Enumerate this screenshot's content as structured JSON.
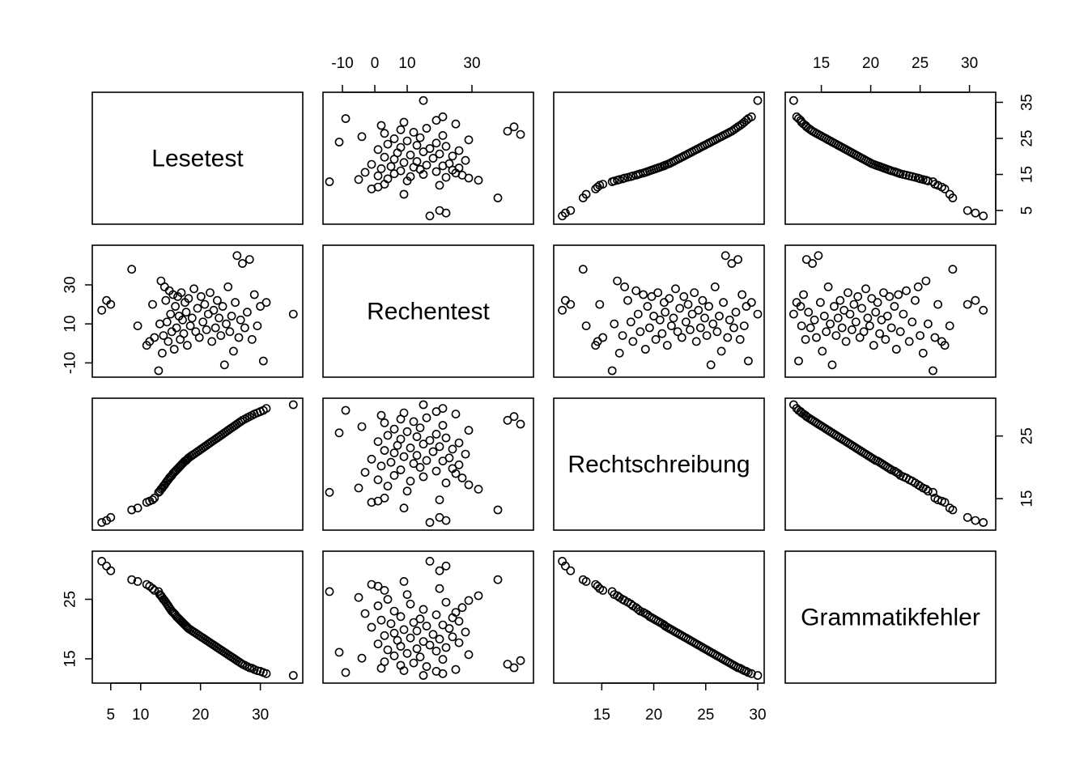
{
  "chart_data": {
    "type": "scatter",
    "kind": "scatterplot-matrix",
    "variables": [
      "Lesetest",
      "Rechentest",
      "Rechtschreibung",
      "Grammatikfehler"
    ],
    "ranges": {
      "Lesetest": [
        3,
        36
      ],
      "Rechentest": [
        -14,
        47
      ],
      "Rechtschreibung": [
        11,
        30
      ],
      "Grammatikfehler": [
        12,
        32
      ]
    },
    "axes": {
      "top": [
        {
          "variable": "Rechentest",
          "ticks": [
            -10,
            0,
            10,
            30
          ]
        },
        {
          "variable": "Grammatikfehler",
          "ticks": [
            15,
            20,
            25,
            30
          ]
        }
      ],
      "bottom": [
        {
          "variable": "Lesetest",
          "ticks": [
            5,
            10,
            20,
            30
          ]
        },
        {
          "variable": "Rechtschreibung",
          "ticks": [
            15,
            20,
            25,
            30
          ]
        }
      ],
      "left": [
        {
          "variable": "Rechentest",
          "ticks": [
            -10,
            10,
            30
          ]
        },
        {
          "variable": "Grammatikfehler",
          "ticks": [
            15,
            25
          ]
        }
      ],
      "right": [
        {
          "variable": "Lesetest",
          "ticks": [
            5,
            15,
            25,
            35
          ]
        },
        {
          "variable": "Rechtschreibung",
          "ticks": [
            15,
            25
          ]
        }
      ]
    },
    "observations": [
      {
        "Lesetest": 3.5,
        "Rechentest": 17,
        "Rechtschreibung": 11.2,
        "Grammatikfehler": 31.4
      },
      {
        "Lesetest": 4.3,
        "Rechentest": 22,
        "Rechtschreibung": 11.5,
        "Grammatikfehler": 30.6
      },
      {
        "Lesetest": 5.0,
        "Rechentest": 20,
        "Rechtschreibung": 12.0,
        "Grammatikfehler": 29.8
      },
      {
        "Lesetest": 8.5,
        "Rechentest": 38,
        "Rechtschreibung": 13.2,
        "Grammatikfehler": 28.3
      },
      {
        "Lesetest": 9.5,
        "Rechentest": 9,
        "Rechtschreibung": 13.5,
        "Grammatikfehler": 28.0
      },
      {
        "Lesetest": 11.0,
        "Rechentest": -1,
        "Rechtschreibung": 14.4,
        "Grammatikfehler": 27.5
      },
      {
        "Lesetest": 11.5,
        "Rechentest": 1,
        "Rechtschreibung": 14.6,
        "Grammatikfehler": 27.2
      },
      {
        "Lesetest": 12.0,
        "Rechentest": 20,
        "Rechtschreibung": 14.8,
        "Grammatikfehler": 26.8
      },
      {
        "Lesetest": 12.3,
        "Rechentest": 3,
        "Rechtschreibung": 15.1,
        "Grammatikfehler": 26.5
      },
      {
        "Lesetest": 13.0,
        "Rechentest": -14,
        "Rechtschreibung": 16.0,
        "Grammatikfehler": 26.3
      },
      {
        "Lesetest": 13.2,
        "Rechentest": 10,
        "Rechtschreibung": 16.2,
        "Grammatikfehler": 25.8
      },
      {
        "Lesetest": 13.4,
        "Rechentest": 32,
        "Rechtschreibung": 16.5,
        "Grammatikfehler": 25.6
      },
      {
        "Lesetest": 13.6,
        "Rechentest": -5,
        "Rechtschreibung": 16.7,
        "Grammatikfehler": 25.3
      },
      {
        "Lesetest": 13.8,
        "Rechentest": 4,
        "Rechtschreibung": 17.0,
        "Grammatikfehler": 25.0
      },
      {
        "Lesetest": 14.0,
        "Rechentest": 29,
        "Rechtschreibung": 17.2,
        "Grammatikfehler": 24.8
      },
      {
        "Lesetest": 14.2,
        "Rechentest": 22,
        "Rechtschreibung": 17.5,
        "Grammatikfehler": 24.5
      },
      {
        "Lesetest": 14.4,
        "Rechentest": 11,
        "Rechtschreibung": 17.8,
        "Grammatikfehler": 24.2
      },
      {
        "Lesetest": 14.6,
        "Rechentest": 1,
        "Rechtschreibung": 18.0,
        "Grammatikfehler": 23.9
      },
      {
        "Lesetest": 14.8,
        "Rechentest": 27,
        "Rechtschreibung": 18.3,
        "Grammatikfehler": 23.6
      },
      {
        "Lesetest": 15.0,
        "Rechentest": 15,
        "Rechtschreibung": 18.5,
        "Grammatikfehler": 23.3
      },
      {
        "Lesetest": 15.2,
        "Rechentest": 6,
        "Rechtschreibung": 18.7,
        "Grammatikfehler": 23.0
      },
      {
        "Lesetest": 15.4,
        "Rechentest": 25,
        "Rechtschreibung": 19.0,
        "Grammatikfehler": 22.8
      },
      {
        "Lesetest": 15.6,
        "Rechentest": -3,
        "Rechtschreibung": 19.2,
        "Grammatikfehler": 22.6
      },
      {
        "Lesetest": 15.8,
        "Rechentest": 19,
        "Rechtschreibung": 19.4,
        "Grammatikfehler": 22.4
      },
      {
        "Lesetest": 16.0,
        "Rechentest": 8,
        "Rechtschreibung": 19.6,
        "Grammatikfehler": 22.1
      },
      {
        "Lesetest": 16.2,
        "Rechentest": 24,
        "Rechtschreibung": 19.8,
        "Grammatikfehler": 21.9
      },
      {
        "Lesetest": 16.4,
        "Rechentest": 14,
        "Rechtschreibung": 20.0,
        "Grammatikfehler": 21.7
      },
      {
        "Lesetest": 16.6,
        "Rechentest": 2,
        "Rechtschreibung": 20.2,
        "Grammatikfehler": 21.5
      },
      {
        "Lesetest": 16.8,
        "Rechentest": 26,
        "Rechtschreibung": 20.4,
        "Grammatikfehler": 21.3
      },
      {
        "Lesetest": 17.0,
        "Rechentest": 12,
        "Rechtschreibung": 20.6,
        "Grammatikfehler": 21.1
      },
      {
        "Lesetest": 17.2,
        "Rechentest": 5,
        "Rechtschreibung": 20.8,
        "Grammatikfehler": 20.9
      },
      {
        "Lesetest": 17.4,
        "Rechentest": 21,
        "Rechtschreibung": 21.0,
        "Grammatikfehler": 20.7
      },
      {
        "Lesetest": 17.6,
        "Rechentest": 16,
        "Rechtschreibung": 21.1,
        "Grammatikfehler": 20.5
      },
      {
        "Lesetest": 17.8,
        "Rechentest": -1,
        "Rechtschreibung": 21.3,
        "Grammatikfehler": 20.3
      },
      {
        "Lesetest": 18.0,
        "Rechentest": 23,
        "Rechtschreibung": 21.5,
        "Grammatikfehler": 20.1
      },
      {
        "Lesetest": 18.3,
        "Rechentest": 9,
        "Rechtschreibung": 21.7,
        "Grammatikfehler": 19.9
      },
      {
        "Lesetest": 18.6,
        "Rechentest": 13,
        "Rechtschreibung": 21.9,
        "Grammatikfehler": 19.7
      },
      {
        "Lesetest": 18.9,
        "Rechentest": 28,
        "Rechtschreibung": 22.1,
        "Grammatikfehler": 19.5
      },
      {
        "Lesetest": 19.2,
        "Rechentest": 6,
        "Rechtschreibung": 22.3,
        "Grammatikfehler": 19.3
      },
      {
        "Lesetest": 19.5,
        "Rechentest": 18,
        "Rechtschreibung": 22.5,
        "Grammatikfehler": 19.1
      },
      {
        "Lesetest": 19.8,
        "Rechentest": 3,
        "Rechtschreibung": 22.7,
        "Grammatikfehler": 18.9
      },
      {
        "Lesetest": 20.1,
        "Rechentest": 24,
        "Rechtschreibung": 22.9,
        "Grammatikfehler": 18.7
      },
      {
        "Lesetest": 20.4,
        "Rechentest": 11,
        "Rechtschreibung": 23.1,
        "Grammatikfehler": 18.5
      },
      {
        "Lesetest": 20.7,
        "Rechentest": 20,
        "Rechtschreibung": 23.3,
        "Grammatikfehler": 18.3
      },
      {
        "Lesetest": 21.0,
        "Rechentest": 7,
        "Rechtschreibung": 23.5,
        "Grammatikfehler": 18.1
      },
      {
        "Lesetest": 21.3,
        "Rechentest": 15,
        "Rechtschreibung": 23.7,
        "Grammatikfehler": 17.9
      },
      {
        "Lesetest": 21.6,
        "Rechentest": 26,
        "Rechtschreibung": 23.9,
        "Grammatikfehler": 17.7
      },
      {
        "Lesetest": 21.9,
        "Rechentest": 1,
        "Rechtschreibung": 24.1,
        "Grammatikfehler": 17.5
      },
      {
        "Lesetest": 22.2,
        "Rechentest": 17,
        "Rechtschreibung": 24.3,
        "Grammatikfehler": 17.3
      },
      {
        "Lesetest": 22.5,
        "Rechentest": 8,
        "Rechtschreibung": 24.5,
        "Grammatikfehler": 17.1
      },
      {
        "Lesetest": 22.8,
        "Rechentest": 22,
        "Rechtschreibung": 24.7,
        "Grammatikfehler": 16.9
      },
      {
        "Lesetest": 23.1,
        "Rechentest": 13,
        "Rechtschreibung": 24.9,
        "Grammatikfehler": 16.7
      },
      {
        "Lesetest": 23.4,
        "Rechentest": 4,
        "Rechtschreibung": 25.1,
        "Grammatikfehler": 16.5
      },
      {
        "Lesetest": 23.7,
        "Rechentest": 19,
        "Rechtschreibung": 25.3,
        "Grammatikfehler": 16.3
      },
      {
        "Lesetest": 24.0,
        "Rechentest": -11,
        "Rechtschreibung": 25.5,
        "Grammatikfehler": 16.1
      },
      {
        "Lesetest": 24.3,
        "Rechentest": 10,
        "Rechtschreibung": 25.7,
        "Grammatikfehler": 15.9
      },
      {
        "Lesetest": 24.6,
        "Rechentest": 29,
        "Rechtschreibung": 25.9,
        "Grammatikfehler": 15.7
      },
      {
        "Lesetest": 24.9,
        "Rechentest": 6,
        "Rechtschreibung": 26.1,
        "Grammatikfehler": 15.5
      },
      {
        "Lesetest": 25.2,
        "Rechentest": 14,
        "Rechtschreibung": 26.3,
        "Grammatikfehler": 15.3
      },
      {
        "Lesetest": 25.5,
        "Rechentest": -4,
        "Rechtschreibung": 26.5,
        "Grammatikfehler": 15.1
      },
      {
        "Lesetest": 25.8,
        "Rechentest": 21,
        "Rechtschreibung": 26.7,
        "Grammatikfehler": 14.9
      },
      {
        "Lesetest": 26.1,
        "Rechentest": 45,
        "Rechtschreibung": 26.9,
        "Grammatikfehler": 14.7
      },
      {
        "Lesetest": 26.4,
        "Rechentest": 3,
        "Rechtschreibung": 27.1,
        "Grammatikfehler": 14.5
      },
      {
        "Lesetest": 26.7,
        "Rechentest": 12,
        "Rechtschreibung": 27.3,
        "Grammatikfehler": 14.3
      },
      {
        "Lesetest": 27.0,
        "Rechentest": 41,
        "Rechtschreibung": 27.5,
        "Grammatikfehler": 14.1
      },
      {
        "Lesetest": 27.4,
        "Rechentest": 8,
        "Rechtschreibung": 27.7,
        "Grammatikfehler": 13.9
      },
      {
        "Lesetest": 27.8,
        "Rechentest": 16,
        "Rechtschreibung": 27.9,
        "Grammatikfehler": 13.7
      },
      {
        "Lesetest": 28.2,
        "Rechentest": 43,
        "Rechtschreibung": 28.1,
        "Grammatikfehler": 13.5
      },
      {
        "Lesetest": 28.6,
        "Rechentest": 2,
        "Rechtschreibung": 28.3,
        "Grammatikfehler": 13.4
      },
      {
        "Lesetest": 29.0,
        "Rechentest": 25,
        "Rechtschreibung": 28.5,
        "Grammatikfehler": 13.2
      },
      {
        "Lesetest": 29.5,
        "Rechentest": 9,
        "Rechtschreibung": 28.7,
        "Grammatikfehler": 13.0
      },
      {
        "Lesetest": 30.0,
        "Rechentest": 19,
        "Rechtschreibung": 28.9,
        "Grammatikfehler": 12.9
      },
      {
        "Lesetest": 30.5,
        "Rechentest": -9,
        "Rechtschreibung": 29.1,
        "Grammatikfehler": 12.7
      },
      {
        "Lesetest": 31.0,
        "Rechentest": 21,
        "Rechtschreibung": 29.4,
        "Grammatikfehler": 12.5
      },
      {
        "Lesetest": 35.5,
        "Rechentest": 15,
        "Rechtschreibung": 30.0,
        "Grammatikfehler": 12.2
      }
    ]
  }
}
